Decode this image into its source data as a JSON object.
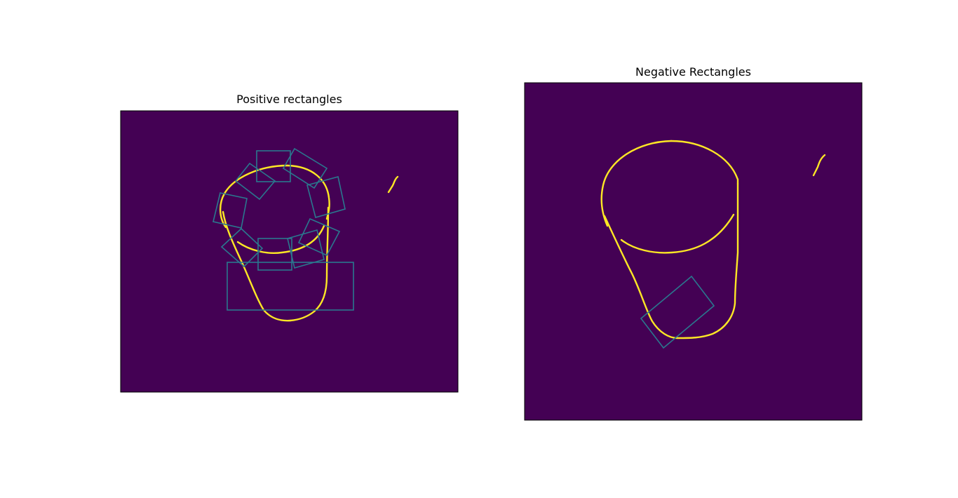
{
  "panels": [
    {
      "title": "Positive rectangles"
    },
    {
      "title": "Negative Rectangles"
    }
  ],
  "colors": {
    "background": "#440154",
    "edge": "#fde725",
    "rectangle": "#2a788e",
    "frame": "#000000",
    "page": "#ffffff"
  }
}
